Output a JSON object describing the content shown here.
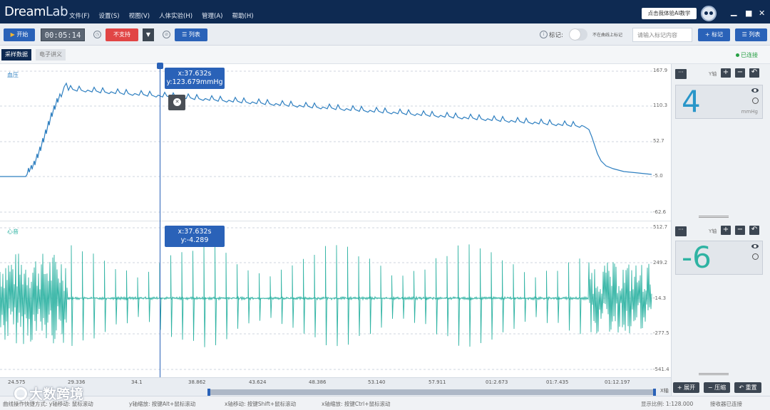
{
  "app": {
    "logo_main": "Dream",
    "logo_sub": "Lab",
    "menu": [
      "文件(F)",
      "设置(S)",
      "视图(V)",
      "人体实验(H)",
      "管理(A)",
      "帮助(H)"
    ],
    "ai_tip": "点击我体验AI教学",
    "window_controls": [
      "minimize-icon",
      "maximize-icon",
      "close-icon"
    ]
  },
  "toolbar": {
    "start_label": "开始",
    "timer": "00:05:14",
    "unsupported_label": "不支持",
    "list_label": "列表",
    "mark_label": "标记:",
    "mark_hint": "不在曲线上标记",
    "mark_placeholder": "请输入标记内容",
    "add_mark_label": "标记",
    "list2_label": "列表"
  },
  "tabs": {
    "sampling": "采样数据",
    "lecture": "电子讲义",
    "status": "已连接"
  },
  "bp_channel": {
    "label": "血压",
    "yticks": [
      "167.9",
      "110.3",
      "52.7",
      "-5.0",
      "-62.6"
    ],
    "tooltip_x": "x:37.632s",
    "tooltip_y": "y:123.679mmHg",
    "value": "4",
    "unit": "mmHg",
    "yaxis_label": "Y轴"
  },
  "ecg_channel": {
    "label": "心音",
    "yticks": [
      "512.7",
      "249.2",
      "-14.3",
      "-277.5",
      "-541.4"
    ],
    "tooltip_x": "x:37.632s",
    "tooltip_y": "y:-4.289",
    "value": "-6",
    "yaxis_label": "Y轴"
  },
  "xaxis": {
    "ticks": [
      "24.575",
      "29.336",
      "34.1",
      "38.862",
      "43.624",
      "48.386",
      "53.140",
      "57.911",
      "01:2.673",
      "01:7.435",
      "01:12.197"
    ],
    "label": "X轴",
    "expand_label": "展开",
    "compress_label": "压缩",
    "reset_label": "重置"
  },
  "statusbar": {
    "hint1": "曲线操作快捷方式: y轴移动: 鼠标滚动",
    "hint2": "y轴缩放: 按键Alt+鼠标滚动",
    "hint3": "x轴移动: 按键Shift+鼠标滚动",
    "hint4": "x轴缩放: 按键Ctrl+鼠标滚动",
    "ratio": "显示比例: 1:128.000",
    "receiver": "接收器已连接"
  },
  "watermark": "大数跨境",
  "colors": {
    "titlebar": "#0e2a52",
    "accent": "#2a62b8",
    "bp_line": "#2e7fc0",
    "ecg_line": "#2fb3a3",
    "danger": "#e14545",
    "connected": "#27a045"
  }
}
